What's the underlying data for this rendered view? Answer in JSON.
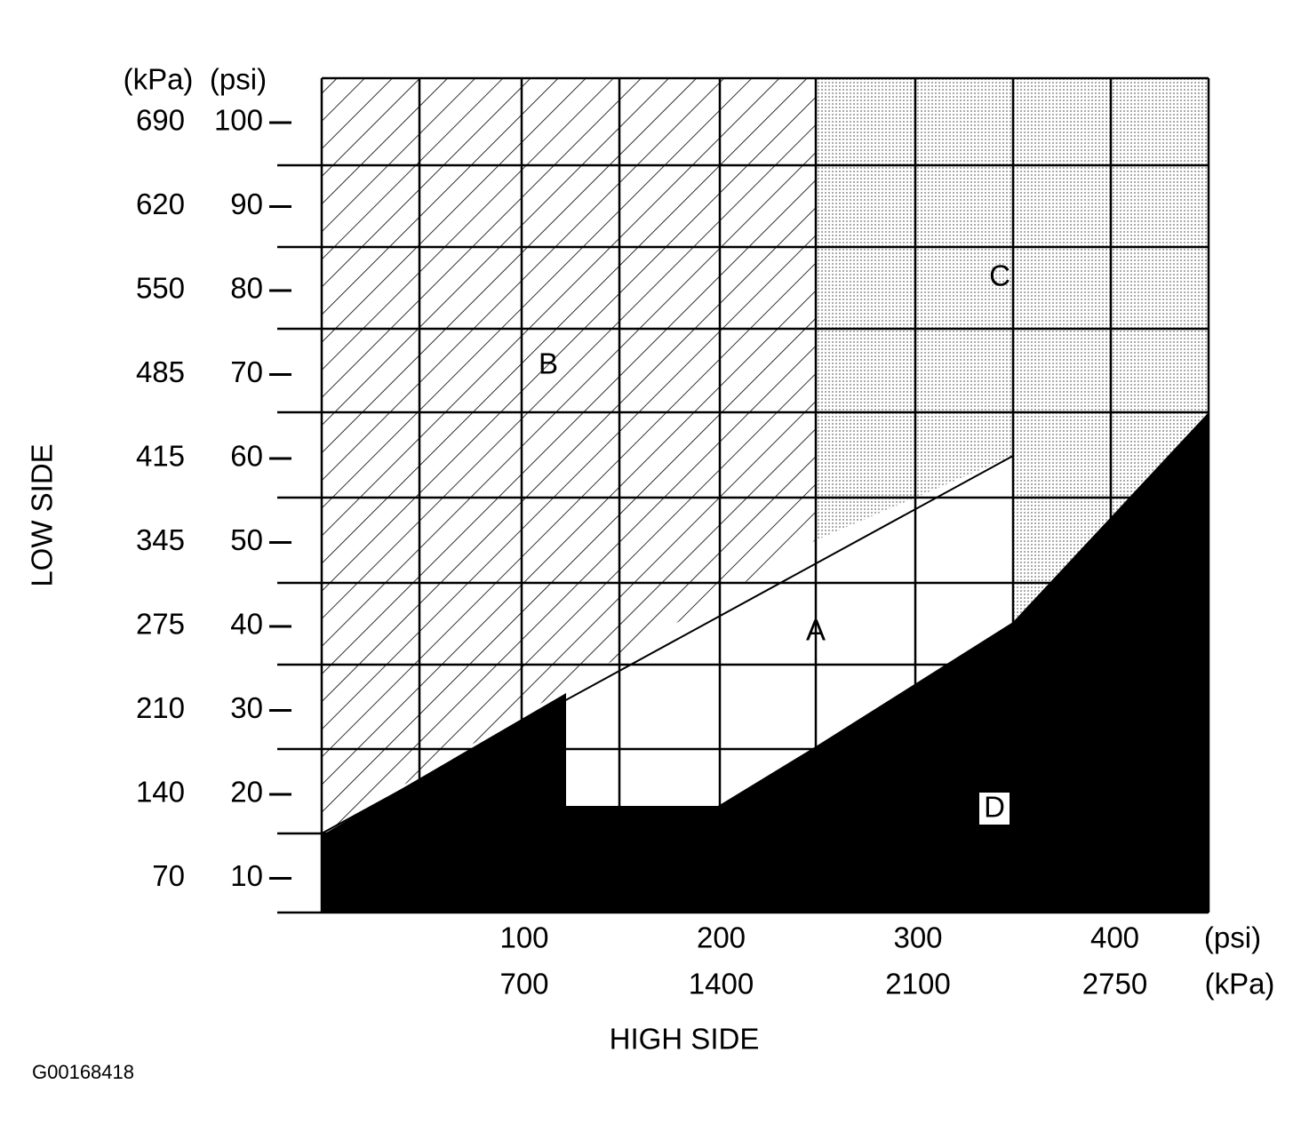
{
  "low_side": {
    "title": "LOW SIDE",
    "kpa_unit": "(kPa)",
    "psi_unit": "(psi)",
    "kpa": [
      690,
      620,
      550,
      485,
      415,
      345,
      275,
      210,
      140,
      70
    ],
    "psi": [
      100,
      90,
      80,
      70,
      60,
      50,
      40,
      30,
      20,
      10
    ]
  },
  "high_side": {
    "title": "HIGH SIDE",
    "psi_unit": "(psi)",
    "kpa_unit": "(kPa)",
    "psi": [
      100,
      200,
      300,
      400
    ],
    "kpa": [
      700,
      1400,
      2100,
      2750
    ]
  },
  "regions": {
    "a": "A",
    "b": "B",
    "c": "C",
    "d": "D"
  },
  "figure_id": "G00168418"
}
